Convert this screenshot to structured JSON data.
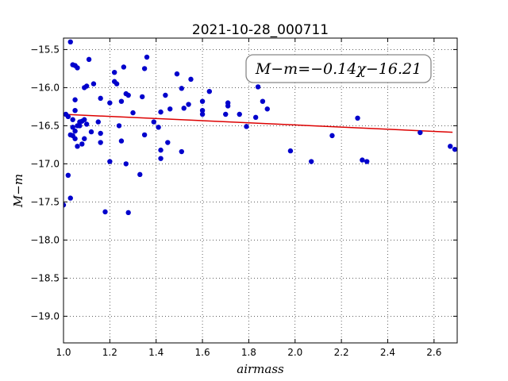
{
  "chart_data": {
    "type": "scatter",
    "title": "2021-10-28_000711",
    "xlabel": "airmass",
    "ylabel": "M−m",
    "xlim": [
      1.0,
      2.7
    ],
    "ylim": [
      -15.35,
      -19.35
    ],
    "y_inverted": true,
    "x_ticks": [
      1.0,
      1.2,
      1.4,
      1.6,
      1.8,
      2.0,
      2.2,
      2.4,
      2.6
    ],
    "x_tick_labels": [
      "1.0",
      "1.2",
      "1.4",
      "1.6",
      "1.8",
      "2.0",
      "2.2",
      "2.4",
      "2.6"
    ],
    "y_ticks": [
      -15.5,
      -16.0,
      -16.5,
      -17.0,
      -17.5,
      -18.0,
      -18.5,
      -19.0
    ],
    "y_tick_labels": [
      "−15.5",
      "−16.0",
      "−16.5",
      "−17.0",
      "−17.5",
      "−18.0",
      "−18.5",
      "−19.0"
    ],
    "grid": true,
    "annotation": "M−m=−0.14χ−16.21",
    "point_color": "#0000cc",
    "fit_color": "#dd0000",
    "fit": {
      "slope": -0.14,
      "intercept": -16.21,
      "x_range": [
        1.0,
        2.68
      ]
    },
    "series": [
      {
        "x": [
          1.0,
          1.01,
          1.02,
          1.02,
          1.03,
          1.03,
          1.03,
          1.04,
          1.04,
          1.04,
          1.04,
          1.05,
          1.05,
          1.05,
          1.05,
          1.05,
          1.06,
          1.06,
          1.06,
          1.07,
          1.07,
          1.08,
          1.08,
          1.09,
          1.09,
          1.09,
          1.1,
          1.1,
          1.11,
          1.12,
          1.13,
          1.15,
          1.16,
          1.16,
          1.16,
          1.18,
          1.2,
          1.2,
          1.22,
          1.22,
          1.23,
          1.24,
          1.25,
          1.25,
          1.26,
          1.27,
          1.27,
          1.28,
          1.28,
          1.3,
          1.33,
          1.34,
          1.35,
          1.35,
          1.36,
          1.39,
          1.41,
          1.42,
          1.42,
          1.42,
          1.44,
          1.45,
          1.46,
          1.49,
          1.51,
          1.51,
          1.52,
          1.54,
          1.55,
          1.6,
          1.6,
          1.6,
          1.63,
          1.7,
          1.71,
          1.71,
          1.76,
          1.79,
          1.83,
          1.84,
          1.86,
          1.88,
          1.98,
          2.07,
          2.16,
          2.27,
          2.29,
          2.31,
          2.54,
          2.67,
          2.69
        ],
        "y": [
          -17.54,
          -16.35,
          -16.38,
          -17.15,
          -15.4,
          -17.45,
          -16.62,
          -16.52,
          -16.63,
          -16.42,
          -15.7,
          -16.57,
          -16.3,
          -16.16,
          -16.67,
          -15.71,
          -16.77,
          -16.5,
          -15.74,
          -16.45,
          -16.5,
          -16.74,
          -16.44,
          -16.0,
          -16.67,
          -16.42,
          -16.48,
          -15.98,
          -15.63,
          -16.58,
          -15.95,
          -16.45,
          -16.6,
          -16.72,
          -16.14,
          -17.63,
          -16.97,
          -16.2,
          -15.8,
          -15.92,
          -15.95,
          -16.5,
          -16.7,
          -16.18,
          -15.73,
          -16.08,
          -17.0,
          -16.1,
          -17.64,
          -16.33,
          -17.14,
          -16.12,
          -16.62,
          -15.75,
          -15.6,
          -16.45,
          -16.52,
          -16.82,
          -16.32,
          -16.93,
          -16.1,
          -16.72,
          -16.28,
          -15.82,
          -16.01,
          -16.84,
          -16.27,
          -16.22,
          -15.89,
          -16.18,
          -16.3,
          -16.35,
          -16.05,
          -16.35,
          -16.2,
          -16.24,
          -16.35,
          -16.51,
          -16.39,
          -15.99,
          -16.18,
          -16.28,
          -16.83,
          -16.97,
          -16.63,
          -16.4,
          -16.95,
          -16.97,
          -16.59,
          -16.77,
          -16.81
        ]
      }
    ]
  }
}
